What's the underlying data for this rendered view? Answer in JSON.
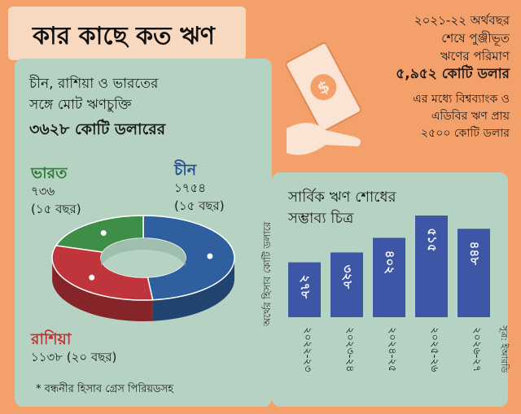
{
  "title": "কার কাছে কত ঋণ",
  "summary": {
    "line1": "২০২১-২২ অর্থবছর",
    "line2": "শেষে পুঞ্জীভূত",
    "line3": "ঋণের পরিমাণ",
    "amount": "৫,৯৫২ কোটি ডলার",
    "note1": "এর মধ্যে বিশ্বব্যাংক ও",
    "note2": "এডিবির ঋণ প্রায়",
    "note3": "২৫০০ কোটি ডলার"
  },
  "left_panel": {
    "head1": "চীন, রাশিয়া ও ভারতের",
    "head2": "সঙ্গে মোট ঋণচুক্তি",
    "total": "৩৬২৮ কোটি ডলারের",
    "footnote": "* বন্ধনীর হিসাব গ্রেস পিরিয়ডসহ"
  },
  "right_panel": {
    "title1": "সার্বিক ঋণ শোধের",
    "title2": "সম্ভাব্য চিত্র",
    "ylabel": "অর্থের হিসাব কোটি ডলারে"
  },
  "source": "সূত্র: ইআরডি",
  "chart_data": [
    {
      "type": "pie",
      "slices": [
        {
          "name": "চীন",
          "value_label": "১৭৫৪",
          "value": 1754,
          "period": "(১৫ বছর)",
          "color": "#2f5f9e"
        },
        {
          "name": "রাশিয়া",
          "value_label": "১১৩৮",
          "value": 1138,
          "period": "(২০ বছর)",
          "color": "#c0353b"
        },
        {
          "name": "ভারত",
          "value_label": "৭৩৬",
          "value": 736,
          "period": "(১৫ বছর)",
          "color": "#3e8e47"
        }
      ]
    },
    {
      "type": "bar",
      "categories": [
        "২০২২-২৩",
        "২০২৩-২৪",
        "২০২৪-২৫",
        "২০২৫-২৬",
        "২০২৬-২৭"
      ],
      "value_labels": [
        "২৭৮",
        "৩২৮",
        "৪০২",
        "৫১৫",
        "৪৪৮"
      ],
      "values": [
        278,
        328,
        402,
        515,
        448
      ],
      "color": "#3d56a6"
    }
  ]
}
